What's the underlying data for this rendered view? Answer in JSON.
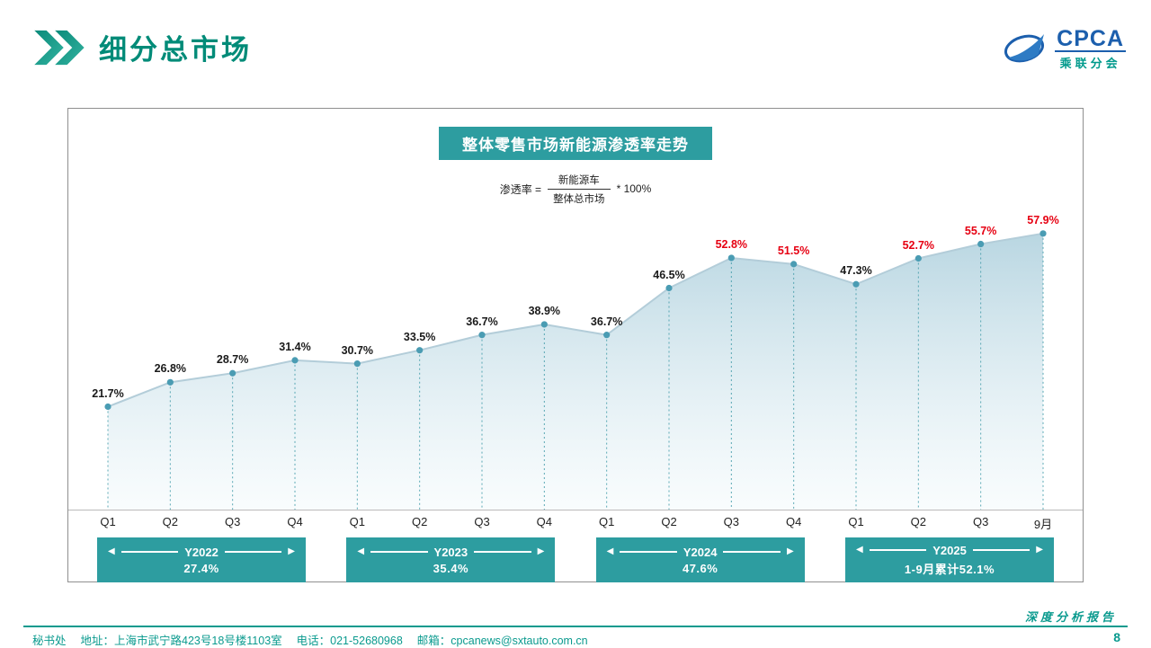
{
  "header": {
    "title": "细分总市场"
  },
  "logo": {
    "name": "CPCA",
    "subtitle": "乘联分会"
  },
  "chart": {
    "banner": "整体零售市场新能源渗透率走势",
    "formula": {
      "lhs": "渗透率 =",
      "numerator": "新能源车",
      "denominator": "整体总市场",
      "rhs": "* 100%"
    }
  },
  "chart_data": {
    "type": "area",
    "title": "整体零售市场新能源渗透率走势",
    "x": [
      "Q1",
      "Q2",
      "Q3",
      "Q4",
      "Q1",
      "Q2",
      "Q3",
      "Q4",
      "Q1",
      "Q2",
      "Q3",
      "Q4",
      "Q1",
      "Q2",
      "Q3",
      "9月"
    ],
    "values": [
      21.7,
      26.8,
      28.7,
      31.4,
      30.7,
      33.5,
      36.7,
      38.9,
      36.7,
      46.5,
      52.8,
      51.5,
      47.3,
      52.7,
      55.7,
      57.9
    ],
    "unit": "%",
    "label_colors": [
      "#1a1a1a",
      "#1a1a1a",
      "#1a1a1a",
      "#1a1a1a",
      "#1a1a1a",
      "#1a1a1a",
      "#1a1a1a",
      "#1a1a1a",
      "#1a1a1a",
      "#1a1a1a",
      "#e60012",
      "#e60012",
      "#1a1a1a",
      "#e60012",
      "#e60012",
      "#e60012"
    ],
    "ylim": [
      0,
      62
    ],
    "grid": false,
    "legend": false,
    "year_bands": [
      {
        "label": "Y2022",
        "value": "27.4%",
        "start": 0,
        "end": 3
      },
      {
        "label": "Y2023",
        "value": "35.4%",
        "start": 4,
        "end": 7
      },
      {
        "label": "Y2024",
        "value": "47.6%",
        "start": 8,
        "end": 11
      },
      {
        "label": "Y2025",
        "value": "1-9月累计52.1%",
        "start": 12,
        "end": 15
      }
    ],
    "colors": {
      "area_top": "#b5d4e0",
      "area_bottom": "#f4fafc",
      "line": "#b3cdd9",
      "dot": "#4a9cb3",
      "dotted_guide": "#3f9aa8",
      "band": "#2d9da0",
      "red_label": "#e60012"
    }
  },
  "footer": {
    "org": "秘书处",
    "address": "地址：上海市武宁路423号18号楼1103室",
    "phone": "电话：021-52680968",
    "email": "邮箱：cpcanews@sxtauto.com.cn",
    "report": "深度分析报告",
    "page": "8"
  }
}
